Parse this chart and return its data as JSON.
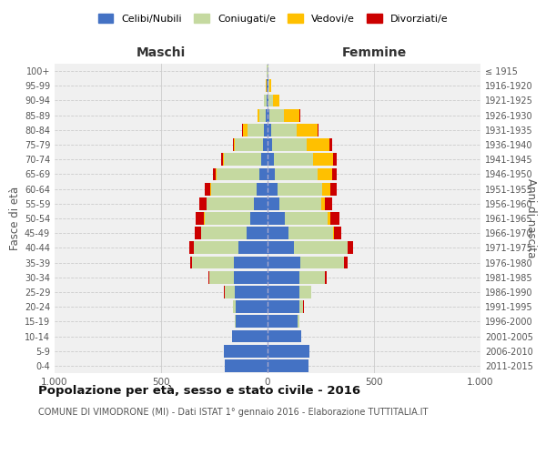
{
  "age_groups": [
    "0-4",
    "5-9",
    "10-14",
    "15-19",
    "20-24",
    "25-29",
    "30-34",
    "35-39",
    "40-44",
    "45-49",
    "50-54",
    "55-59",
    "60-64",
    "65-69",
    "70-74",
    "75-79",
    "80-84",
    "85-89",
    "90-94",
    "95-99",
    "100+"
  ],
  "birth_years": [
    "2011-2015",
    "2006-2010",
    "2001-2005",
    "1996-2000",
    "1991-1995",
    "1986-1990",
    "1981-1985",
    "1976-1980",
    "1971-1975",
    "1966-1970",
    "1961-1965",
    "1956-1960",
    "1951-1955",
    "1946-1950",
    "1941-1945",
    "1936-1940",
    "1931-1935",
    "1926-1930",
    "1921-1925",
    "1916-1920",
    "≤ 1915"
  ],
  "males": {
    "celibe": [
      200,
      205,
      165,
      148,
      148,
      152,
      158,
      160,
      135,
      100,
      82,
      65,
      50,
      38,
      30,
      20,
      15,
      8,
      5,
      3,
      2
    ],
    "coniugato": [
      0,
      1,
      2,
      5,
      15,
      50,
      115,
      195,
      210,
      212,
      215,
      220,
      215,
      200,
      175,
      135,
      80,
      30,
      10,
      3,
      1
    ],
    "vedovo": [
      0,
      0,
      0,
      0,
      0,
      0,
      0,
      0,
      1,
      1,
      2,
      2,
      3,
      5,
      5,
      5,
      20,
      8,
      3,
      1,
      0
    ],
    "divorziato": [
      0,
      0,
      0,
      0,
      1,
      2,
      5,
      10,
      20,
      30,
      40,
      35,
      25,
      15,
      10,
      4,
      3,
      2,
      0,
      0,
      0
    ]
  },
  "females": {
    "nubile": [
      192,
      198,
      158,
      143,
      148,
      148,
      148,
      152,
      122,
      100,
      82,
      55,
      45,
      35,
      28,
      22,
      15,
      10,
      5,
      3,
      2
    ],
    "coniugata": [
      0,
      0,
      2,
      5,
      20,
      55,
      120,
      205,
      252,
      207,
      200,
      195,
      210,
      200,
      185,
      160,
      120,
      65,
      20,
      5,
      1
    ],
    "vedova": [
      0,
      0,
      0,
      0,
      0,
      1,
      2,
      2,
      3,
      5,
      12,
      20,
      40,
      70,
      95,
      110,
      100,
      75,
      30,
      8,
      2
    ],
    "divorziata": [
      0,
      0,
      0,
      0,
      1,
      3,
      8,
      15,
      25,
      35,
      45,
      35,
      30,
      20,
      15,
      10,
      5,
      3,
      1,
      0,
      0
    ]
  },
  "colors": {
    "celibe": "#4472c4",
    "coniugato": "#c5d9a0",
    "vedovo": "#ffc000",
    "divorziato": "#cc0000"
  },
  "xlim": 1000,
  "title": "Popolazione per età, sesso e stato civile - 2016",
  "subtitle": "COMUNE DI VIMODRONE (MI) - Dati ISTAT 1° gennaio 2016 - Elaborazione TUTTITALIA.IT",
  "xlabel_left": "Maschi",
  "xlabel_right": "Femmine",
  "ylabel_left": "Fasce di età",
  "ylabel_right": "Anni di nascita",
  "legend_labels": [
    "Celibi/Nubili",
    "Coniugati/e",
    "Vedovi/e",
    "Divorziati/e"
  ],
  "bg_color": "#ffffff",
  "plot_bg": "#f0f0f0",
  "grid_color": "#cccccc"
}
